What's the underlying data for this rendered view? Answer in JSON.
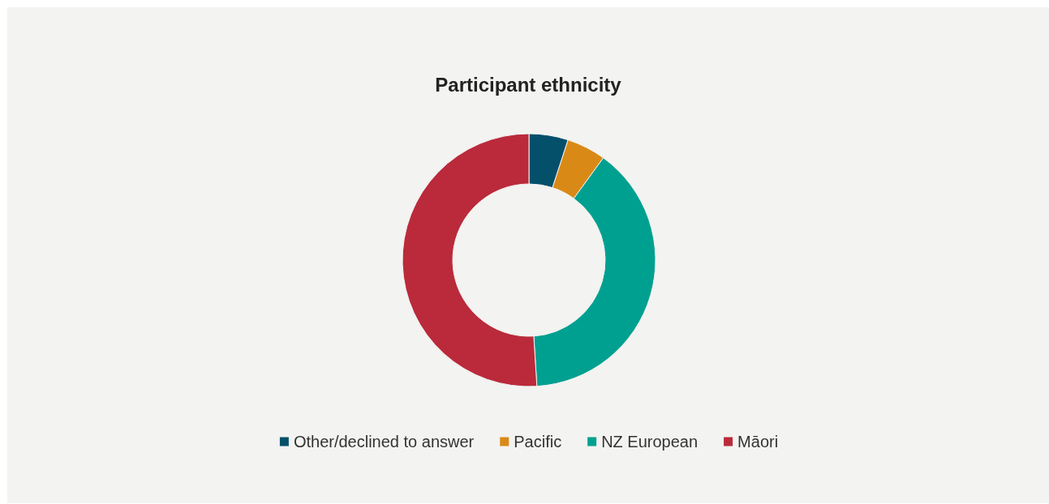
{
  "chart_data": {
    "type": "donut",
    "title": "Participant ethnicity",
    "categories": [
      "Other/declined to answer",
      "Pacific",
      "NZ European",
      "Māori"
    ],
    "values": [
      5,
      5,
      39,
      51
    ],
    "colors": [
      "#04506b",
      "#d98a16",
      "#00a091",
      "#ba2a3b"
    ],
    "legend": "bottom"
  }
}
